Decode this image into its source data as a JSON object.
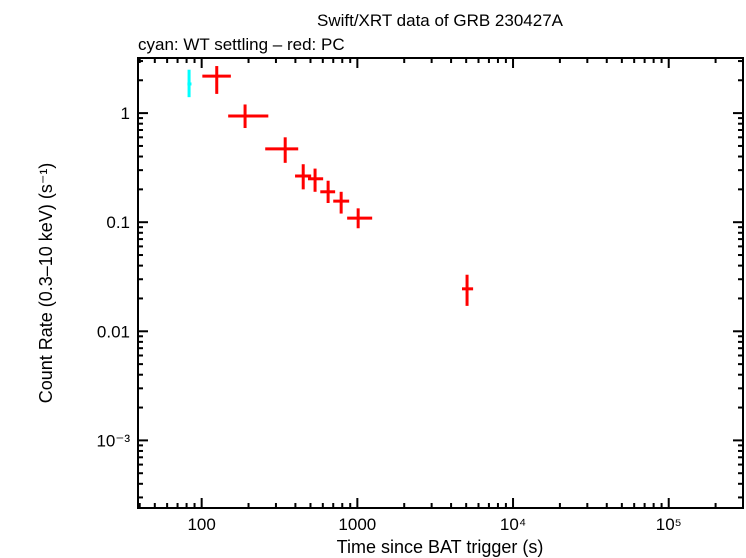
{
  "chart_data": {
    "type": "scatter",
    "title": "Swift/XRT data of GRB 230427A",
    "subtitle": "cyan: WT settling – red: PC",
    "xlabel": "Time since BAT trigger (s)",
    "ylabel": "Count Rate (0.3–10 keV) (s⁻¹)",
    "xscale": "log",
    "yscale": "log",
    "xlim": [
      39,
      300000
    ],
    "ylim": [
      0.00024,
      3.2
    ],
    "grid": false,
    "x_ticks": [
      {
        "value": 100,
        "label": "100"
      },
      {
        "value": 1000,
        "label": "1000"
      },
      {
        "value": 10000,
        "label": "10⁴"
      },
      {
        "value": 100000,
        "label": "10⁵"
      }
    ],
    "y_ticks": [
      {
        "value": 1,
        "label": "1"
      },
      {
        "value": 0.1,
        "label": "0.1"
      },
      {
        "value": 0.01,
        "label": "0.01"
      },
      {
        "value": 0.001,
        "label": "10⁻³"
      }
    ],
    "series": [
      {
        "name": "WT settling",
        "color": "#00ffff",
        "points": [
          {
            "x": 83,
            "xlo": 81,
            "xhi": 86,
            "y": 1.85,
            "ylo": 1.4,
            "yhi": 2.5
          }
        ]
      },
      {
        "name": "PC",
        "color": "#ff0000",
        "points": [
          {
            "x": 125,
            "xlo": 101,
            "xhi": 154,
            "y": 2.18,
            "ylo": 1.5,
            "yhi": 2.7
          },
          {
            "x": 190,
            "xlo": 148,
            "xhi": 268,
            "y": 0.94,
            "ylo": 0.73,
            "yhi": 1.2
          },
          {
            "x": 344,
            "xlo": 256,
            "xhi": 417,
            "y": 0.47,
            "ylo": 0.35,
            "yhi": 0.6
          },
          {
            "x": 449,
            "xlo": 398,
            "xhi": 505,
            "y": 0.265,
            "ylo": 0.2,
            "yhi": 0.34
          },
          {
            "x": 535,
            "xlo": 482,
            "xhi": 603,
            "y": 0.25,
            "ylo": 0.19,
            "yhi": 0.31
          },
          {
            "x": 649,
            "xlo": 578,
            "xhi": 720,
            "y": 0.19,
            "ylo": 0.15,
            "yhi": 0.24
          },
          {
            "x": 787,
            "xlo": 700,
            "xhi": 886,
            "y": 0.156,
            "ylo": 0.12,
            "yhi": 0.19
          },
          {
            "x": 1012,
            "xlo": 860,
            "xhi": 1245,
            "y": 0.109,
            "ylo": 0.088,
            "yhi": 0.134
          },
          {
            "x": 5066,
            "xlo": 4700,
            "xhi": 5540,
            "y": 0.0245,
            "ylo": 0.0171,
            "yhi": 0.033
          }
        ]
      }
    ]
  }
}
